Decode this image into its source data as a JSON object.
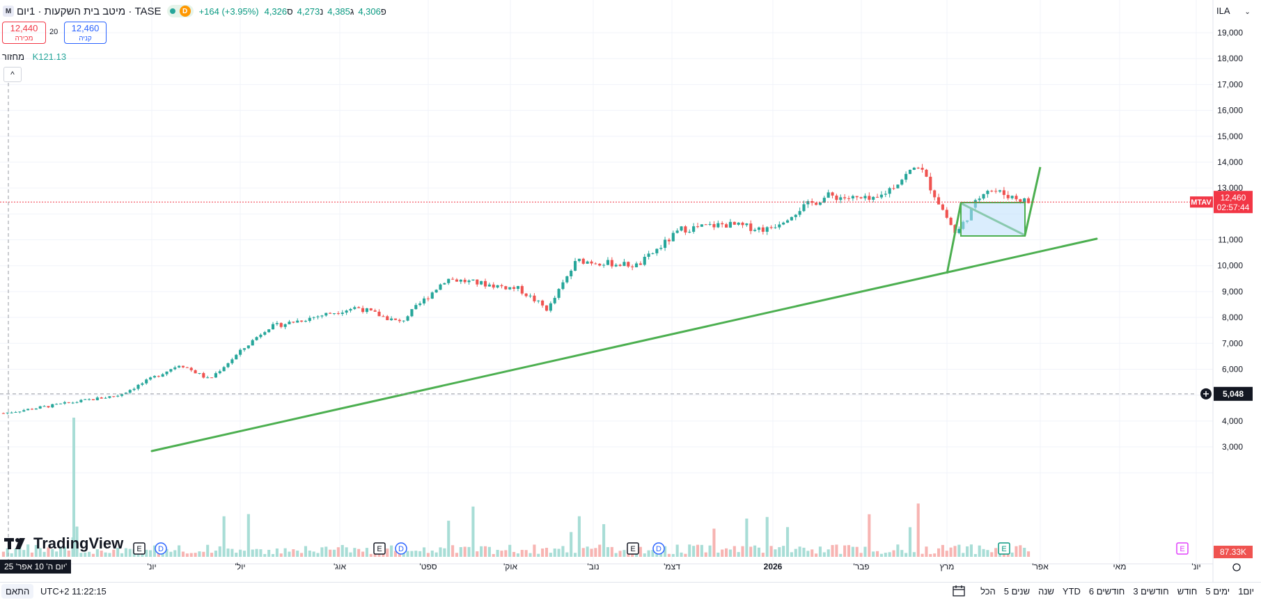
{
  "header": {
    "logo_letter": "M",
    "title": "מיטב בית השקעות · 1יום · TASE",
    "badge": "D",
    "change": "+164 (+3.95%)",
    "close_label": "ס",
    "close_value": "4,326",
    "low_label": "נ",
    "low_value": "4,273",
    "high_label": "ג",
    "high_value": "4,385",
    "open_label": "פ",
    "open_value": "4,306"
  },
  "trade": {
    "sell_price": "12,440",
    "sell_label": "מכירה",
    "spread": "20",
    "buy_price": "12,460",
    "buy_label": "קניה"
  },
  "volume_legend": {
    "label": "מחזור",
    "value": "K121.13"
  },
  "currency": "ILA",
  "price_axis": {
    "ticks": [
      "19,000",
      "18,000",
      "17,000",
      "16,000",
      "15,000",
      "14,000",
      "13,000",
      "11,000",
      "10,000",
      "9,000",
      "8,000",
      "7,000",
      "6,000",
      "4,000",
      "3,000"
    ],
    "current_symbol": "MTAV",
    "current_price": "12,460",
    "countdown": "02:57:44",
    "crosshair_value": "5,048",
    "volume_value": "87.33K"
  },
  "time_axis": {
    "labels": [
      "'יונ",
      "'יול",
      "'אוג",
      "'ספט",
      "'אוק",
      "'נוב",
      "'דצמ",
      "2026",
      "'פבר",
      "מרץ",
      "'אפר",
      "מאי",
      "'יונ"
    ]
  },
  "event_markers": [
    "E",
    "D",
    "E",
    "D",
    "E",
    "D",
    "E",
    "E"
  ],
  "date_badge": "יום ה' 10 אפר' 25'",
  "brand": "TradingView",
  "bottom": {
    "fit_label": "התאם",
    "timezone": "UTC+2 11:22:15",
    "timeframes": [
      "1יום",
      "5 ימים",
      "חודש",
      "3 חודשים",
      "6 חודשים",
      "YTD",
      "שנה",
      "5 שנים",
      "הכל"
    ]
  },
  "colors": {
    "up": "#26a69a",
    "down": "#ef5350",
    "trend": "#4caf50",
    "price_line": "#f23645",
    "rect_fill": "#bbdefb"
  },
  "chart_data": {
    "type": "candlestick",
    "y_range": [
      1600,
      20000
    ],
    "approx_close_path": [
      [
        "2025-04-10",
        4300
      ],
      [
        "2025-05-20",
        5000
      ],
      [
        "2025-06-10",
        6200
      ],
      [
        "2025-06-20",
        5600
      ],
      [
        "2025-07-10",
        7600
      ],
      [
        "2025-08-10",
        8400
      ],
      [
        "2025-08-25",
        7800
      ],
      [
        "2025-09-10",
        9500
      ],
      [
        "2025-10-05",
        9100
      ],
      [
        "2025-10-15",
        8300
      ],
      [
        "2025-10-25",
        10200
      ],
      [
        "2025-11-15",
        10000
      ],
      [
        "2025-11-30",
        11400
      ],
      [
        "2025-12-15",
        11600
      ],
      [
        "2025-12-30",
        11400
      ],
      [
        "2026-01-10",
        12200
      ],
      [
        "2026-01-20",
        12700
      ],
      [
        "2026-02-05",
        12500
      ],
      [
        "2026-02-20",
        13900
      ],
      [
        "2026-03-05",
        11200
      ],
      [
        "2026-03-15",
        13000
      ],
      [
        "2026-03-30",
        12460
      ]
    ]
  }
}
